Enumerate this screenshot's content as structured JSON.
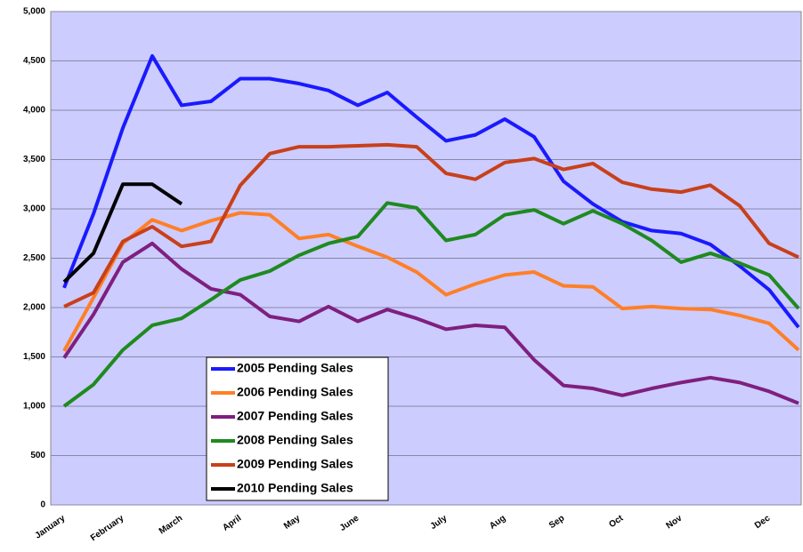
{
  "chart_data": {
    "type": "line",
    "categories": [
      "January",
      null,
      "February",
      null,
      "March",
      null,
      "April",
      null,
      "May",
      null,
      "June",
      null,
      null,
      "July",
      null,
      "Aug",
      null,
      "Sep",
      null,
      "Oct",
      null,
      "Nov",
      null,
      null,
      "Dec",
      null
    ],
    "series": [
      {
        "name": "2005 Pending Sales",
        "color": "#1a1aff",
        "values": [
          2200,
          2950,
          3820,
          4550,
          4050,
          4090,
          4320,
          4320,
          4270,
          4200,
          4050,
          4180,
          3930,
          3690,
          3750,
          3910,
          3730,
          3280,
          3050,
          2870,
          2780,
          2750,
          2640,
          2420,
          2180,
          1800
        ]
      },
      {
        "name": "2006 Pending Sales",
        "color": "#ff7f27",
        "values": [
          1560,
          2100,
          2650,
          2890,
          2780,
          2880,
          2960,
          2940,
          2700,
          2740,
          2620,
          2510,
          2360,
          2130,
          2240,
          2330,
          2360,
          2220,
          2210,
          1990,
          2010,
          1990,
          1980,
          1920,
          1840,
          1570
        ]
      },
      {
        "name": "2007 Pending Sales",
        "color": "#7f1f7f",
        "values": [
          1490,
          1930,
          2460,
          2650,
          2390,
          2190,
          2130,
          1910,
          1860,
          2010,
          1860,
          1980,
          1890,
          1780,
          1820,
          1800,
          1470,
          1210,
          1180,
          1110,
          1180,
          1240,
          1290,
          1240,
          1150,
          1030
        ]
      },
      {
        "name": "2008 Pending Sales",
        "color": "#1f8a1f",
        "values": [
          1000,
          1220,
          1570,
          1820,
          1890,
          2080,
          2280,
          2370,
          2530,
          2650,
          2720,
          3060,
          3010,
          2680,
          2740,
          2940,
          2990,
          2850,
          2980,
          2850,
          2680,
          2460,
          2550,
          2450,
          2330,
          1990
        ]
      },
      {
        "name": "2009 Pending Sales",
        "color": "#c8401a",
        "values": [
          2010,
          2150,
          2670,
          2820,
          2620,
          2670,
          3240,
          3560,
          3630,
          3630,
          3640,
          3650,
          3630,
          3360,
          3300,
          3470,
          3510,
          3400,
          3460,
          3270,
          3200,
          3170,
          3240,
          3030,
          2650,
          2510
        ]
      },
      {
        "name": "2010 Pending Sales",
        "color": "#000000",
        "values": [
          2260,
          2550,
          3250,
          3250,
          3050,
          null,
          null,
          null,
          null,
          null,
          null,
          null,
          null,
          null,
          null,
          null,
          null,
          null,
          null,
          null,
          null,
          null,
          null,
          null,
          null,
          null
        ]
      }
    ],
    "ylim": [
      0,
      5000
    ],
    "yticks": [
      0,
      500,
      {
        "value": 1000,
        "label": "1,000"
      },
      {
        "value": 1500,
        "label": "1,500"
      },
      {
        "value": 2000,
        "label": "2,000"
      },
      {
        "value": 2500,
        "label": "2,500"
      },
      {
        "value": 3000,
        "label": "3,000"
      },
      {
        "value": 3500,
        "label": "3,500"
      },
      {
        "value": 4000,
        "label": "4,000"
      },
      {
        "value": 4500,
        "label": "4,500"
      },
      {
        "value": 5000,
        "label": "5,000"
      }
    ],
    "grid": true
  }
}
